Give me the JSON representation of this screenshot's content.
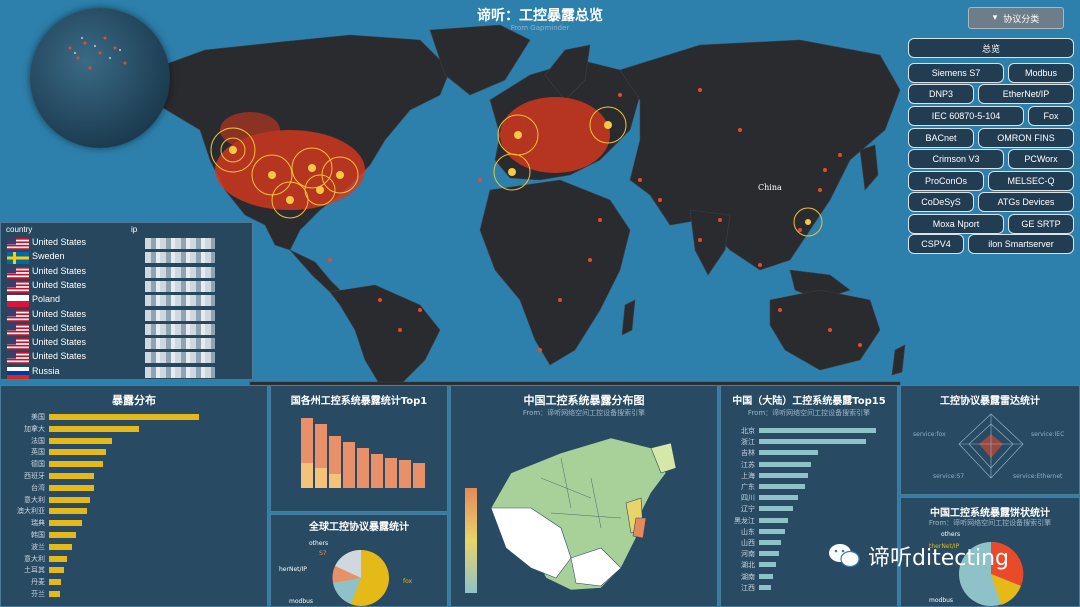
{
  "app": {
    "title": "谛听：工控暴露总览",
    "subtitle": "From Gapminder"
  },
  "map": {
    "country_label": "China"
  },
  "dropdown": {
    "label": "协议分类",
    "icon": "chevron-down-icon"
  },
  "protocols": [
    "总览",
    "Siemens S7",
    "Modbus",
    "DNP3",
    "EtherNet/IP",
    "IEC 60870-5-104",
    "Fox",
    "BACnet",
    "OMRON FINS",
    "Crimson V3",
    "PCWorx",
    "ProConOs",
    "MELSEC-Q",
    "CoDeSyS",
    "ATGs Devices",
    "Moxa Nport",
    "GE SRTP",
    "CSPV4",
    "ilon Smartserver"
  ],
  "table": {
    "headers": [
      "country",
      "ip"
    ],
    "rows": [
      {
        "flag": "us",
        "country": "United States"
      },
      {
        "flag": "se",
        "country": "Sweden"
      },
      {
        "flag": "us",
        "country": "United States"
      },
      {
        "flag": "us",
        "country": "United States"
      },
      {
        "flag": "pl",
        "country": "Poland"
      },
      {
        "flag": "us",
        "country": "United States"
      },
      {
        "flag": "us",
        "country": "United States"
      },
      {
        "flag": "us",
        "country": "United States"
      },
      {
        "flag": "us",
        "country": "United States"
      },
      {
        "flag": "ru",
        "country": "Russia"
      }
    ]
  },
  "exposure": {
    "title": "暴露分布",
    "countries": [
      "美国",
      "加拿大",
      "法国",
      "英国",
      "德国",
      "西班牙",
      "台湾",
      "意大利",
      "澳大利亚",
      "瑞典",
      "韩国",
      "波兰",
      "意大利",
      "土耳其",
      "丹麦",
      "芬兰"
    ],
    "values": [
      1.0,
      0.6,
      0.42,
      0.38,
      0.36,
      0.3,
      0.3,
      0.27,
      0.25,
      0.22,
      0.18,
      0.15,
      0.12,
      0.1,
      0.08,
      0.07
    ]
  },
  "europe": {
    "title": "国各州工控系统暴露统计Top1"
  },
  "global_proto": {
    "title": "全球工控协议暴露统计",
    "labels": [
      "others",
      "S7",
      "herNet/IP",
      "modbus",
      "fox"
    ]
  },
  "china_map": {
    "title": "中国工控系统暴露分布图",
    "subtitle": "From：谛听网络空间工控设备搜索引擎"
  },
  "china_top": {
    "title": "中国（大陆）工控系统暴露Top15",
    "subtitle": "From：谛听网络空间工控设备搜索引擎",
    "provinces": [
      "北京",
      "浙江",
      "吉林",
      "江苏",
      "上海",
      "广东",
      "四川",
      "辽宁",
      "黑龙江",
      "山东",
      "山西",
      "河南",
      "湖北",
      "湖南",
      "江西"
    ],
    "values": [
      0.9,
      0.82,
      0.45,
      0.4,
      0.38,
      0.35,
      0.3,
      0.26,
      0.22,
      0.2,
      0.17,
      0.15,
      0.13,
      0.11,
      0.09
    ]
  },
  "radar": {
    "title": "工控协议暴露雷达统计",
    "labels": [
      "service:fox",
      "service:IEC",
      "service:S7",
      "service:Ethernet"
    ]
  },
  "china_pie": {
    "title": "中国工控系统暴露饼状统计",
    "subtitle": "From：谛听网络空间工控设备搜索引擎",
    "labels": [
      "others",
      "therNet/IP",
      "modbus"
    ]
  },
  "watermark": {
    "text": "谛听ditecting"
  }
}
